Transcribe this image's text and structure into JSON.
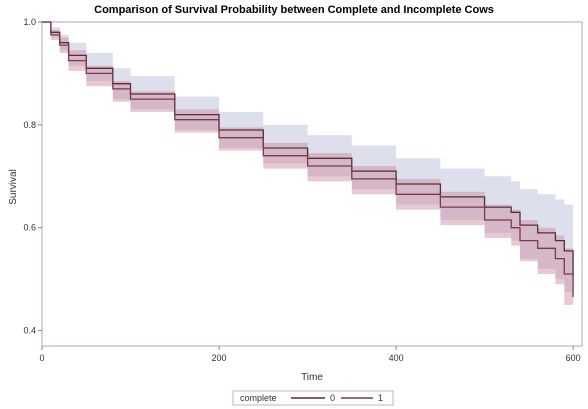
{
  "chart_data": {
    "type": "line",
    "title": "Comparison of Survival Probability between Complete and Incomplete Cows",
    "xlabel": "Time",
    "ylabel": "Survival",
    "xlim": [
      0,
      610
    ],
    "ylim": [
      0.37,
      1.0
    ],
    "xticks": [
      0,
      200,
      400,
      600
    ],
    "yticks": [
      0.4,
      0.6,
      0.8,
      1.0
    ],
    "xtick_labels": [
      "0",
      "200",
      "400",
      "600"
    ],
    "ytick_labels": [
      "0.4",
      "0.6",
      "0.8",
      "1.0"
    ],
    "legend_title": "complete",
    "legend_position": "bottom",
    "grid": false,
    "series": [
      {
        "name": "0",
        "color": "#5a2a36",
        "band_color": "#b5b9d6",
        "x": [
          0,
          10,
          20,
          30,
          50,
          80,
          100,
          150,
          200,
          250,
          300,
          350,
          400,
          450,
          500,
          530,
          540,
          560,
          580,
          590,
          600
        ],
        "y": [
          1.0,
          0.98,
          0.96,
          0.935,
          0.91,
          0.88,
          0.86,
          0.82,
          0.79,
          0.755,
          0.735,
          0.71,
          0.685,
          0.66,
          0.64,
          0.63,
          0.605,
          0.59,
          0.575,
          0.555,
          0.505
        ],
        "upper": [
          1.0,
          0.99,
          0.975,
          0.96,
          0.94,
          0.91,
          0.895,
          0.855,
          0.825,
          0.8,
          0.78,
          0.76,
          0.735,
          0.715,
          0.7,
          0.69,
          0.675,
          0.665,
          0.655,
          0.645,
          0.64
        ],
        "lower": [
          1.0,
          0.97,
          0.945,
          0.915,
          0.885,
          0.85,
          0.83,
          0.79,
          0.755,
          0.725,
          0.7,
          0.675,
          0.645,
          0.615,
          0.59,
          0.575,
          0.54,
          0.52,
          0.5,
          0.475,
          0.41
        ]
      },
      {
        "name": "1",
        "color": "#7a3a4e",
        "band_color": "#c98a98",
        "x": [
          0,
          10,
          20,
          30,
          50,
          80,
          100,
          150,
          200,
          250,
          300,
          350,
          400,
          450,
          500,
          530,
          540,
          560,
          580,
          590,
          600
        ],
        "y": [
          1.0,
          0.975,
          0.955,
          0.925,
          0.9,
          0.87,
          0.85,
          0.81,
          0.775,
          0.74,
          0.72,
          0.695,
          0.665,
          0.64,
          0.615,
          0.6,
          0.575,
          0.56,
          0.54,
          0.51,
          0.465
        ],
        "upper": [
          1.0,
          0.985,
          0.97,
          0.945,
          0.915,
          0.885,
          0.865,
          0.83,
          0.795,
          0.765,
          0.745,
          0.72,
          0.695,
          0.67,
          0.645,
          0.635,
          0.615,
          0.6,
          0.585,
          0.56,
          0.52
        ],
        "lower": [
          1.0,
          0.965,
          0.94,
          0.905,
          0.875,
          0.845,
          0.825,
          0.785,
          0.75,
          0.715,
          0.69,
          0.665,
          0.635,
          0.605,
          0.58,
          0.565,
          0.535,
          0.51,
          0.49,
          0.45,
          0.38
        ]
      }
    ]
  }
}
